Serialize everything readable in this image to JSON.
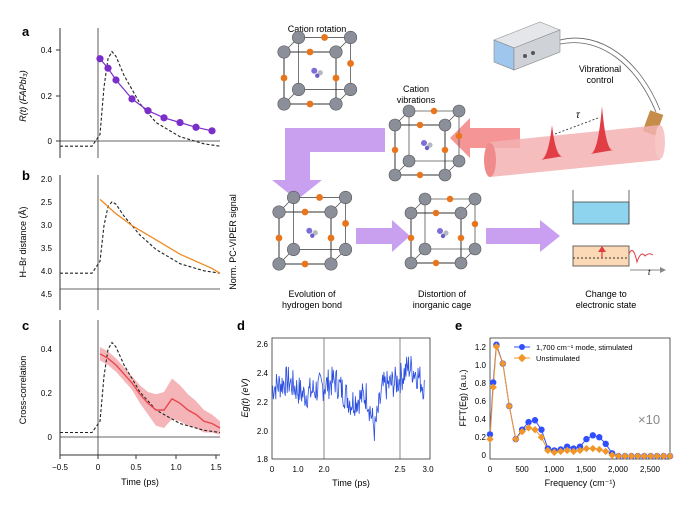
{
  "colors": {
    "purple": "#7b2fc9",
    "orange": "#f08a24",
    "red": "#e8474c",
    "red_band": "#f3a3a6",
    "blue": "#2b4fe0",
    "blue_dots": "#3050ff",
    "orange_dots": "#f0962a",
    "lavender_arrow": "#c08cf0",
    "pink_arrow": "#f06a6a",
    "atom_grey": "#8a8f99",
    "atom_orange": "#e8741c",
    "water": "#8fd4ee"
  },
  "panel_labels": {
    "a": "a",
    "b": "b",
    "c": "c",
    "d": "d",
    "e": "e"
  },
  "shared": {
    "ylabel_right": "Norm. PC-VIPER signal",
    "xlabel_time": "Time (ps)",
    "xticks_ac": [
      "−0.5",
      "0",
      "0.5",
      "1.0",
      "1.5"
    ]
  },
  "panel_a": {
    "ylabel": "R(t) (FAPbI₃)",
    "yticks": [
      "0.4",
      "0.2",
      "0"
    ]
  },
  "panel_b": {
    "ylabel": "H–Br distance (Å)",
    "yticks": [
      "2.0",
      "2.5",
      "3.0",
      "3.5",
      "4.0",
      "4.5"
    ]
  },
  "panel_c": {
    "ylabel": "Cross-correlation",
    "yticks": [
      "0.4",
      "0.2",
      "0"
    ]
  },
  "panel_d": {
    "ylabel": "Eg(t) (eV)",
    "yticks": [
      "2.6",
      "2.4",
      "2.2",
      "2.0",
      "1.8"
    ],
    "xticks": [
      "0",
      "1.0",
      "2.0",
      "2.5",
      "3.0"
    ],
    "xlabel": "Time (ps)"
  },
  "panel_e": {
    "ylabel": "FFT(Eg) (a.u.)",
    "yticks": [
      "1.2",
      "1.0",
      "0.8",
      "0.6",
      "0.4",
      "0.2",
      "0"
    ],
    "xticks": [
      "0",
      "500",
      "1,000",
      "1,500",
      "2,000",
      "2,500"
    ],
    "xlabel": "Frequency (cm⁻¹)",
    "legend_stimulated": "1,700 cm⁻¹ mode, stimulated",
    "legend_unstimulated": "Unstimulated",
    "scale_note": "×10"
  },
  "schematic": {
    "cation_rotation": "Cation rotation",
    "cation_vibrations_1": "Cation",
    "cation_vibrations_2": "vibrations",
    "vibrational_control_1": "Vibrational",
    "vibrational_control_2": "control",
    "tau": "τ",
    "evolution_1": "Evolution of",
    "evolution_2": "hydrogen bond",
    "distortion_1": "Distortion of",
    "distortion_2": "inorganic cage",
    "change_1": "Change to",
    "change_2": "electronic state",
    "t_label": "t"
  },
  "chart_data": [
    {
      "type": "line",
      "panel": "a",
      "ylabel": "R(t) (FAPbI₃)",
      "xlim": [
        -0.5,
        1.5
      ],
      "ylim": [
        -0.05,
        0.5
      ],
      "series": [
        {
          "style": "markers",
          "x": [
            0.0,
            0.1,
            0.2,
            0.4,
            0.6,
            0.8,
            1.0,
            1.2,
            1.4
          ],
          "y": [
            0.37,
            0.33,
            0.28,
            0.2,
            0.15,
            0.12,
            0.1,
            0.08,
            0.065
          ]
        },
        {
          "style": "dashed",
          "x": [
            -0.5,
            -0.1,
            0.0,
            0.05,
            0.1,
            0.15,
            0.2,
            0.3,
            0.5,
            0.7,
            1.0,
            1.3,
            1.5
          ],
          "y": [
            0.0,
            0.0,
            0.05,
            0.25,
            0.37,
            0.4,
            0.38,
            0.3,
            0.18,
            0.1,
            0.04,
            0.01,
            0.0
          ]
        }
      ]
    },
    {
      "type": "line",
      "panel": "b",
      "ylabel": "H–Br distance (Å)",
      "xlim": [
        -0.5,
        1.5
      ],
      "ylim": [
        4.5,
        2.0
      ],
      "series": [
        {
          "style": "solid",
          "x": [
            0.0,
            0.1,
            0.2,
            0.4,
            0.6,
            0.8,
            1.0,
            1.2,
            1.4,
            1.5
          ],
          "y": [
            2.45,
            2.6,
            2.75,
            3.0,
            3.2,
            3.4,
            3.6,
            3.75,
            3.9,
            4.0
          ]
        },
        {
          "style": "dashed",
          "x": [
            -0.5,
            -0.1,
            0.0,
            0.05,
            0.1,
            0.15,
            0.2,
            0.3,
            0.5,
            0.7,
            1.0,
            1.3,
            1.5
          ],
          "y": [
            4.0,
            4.0,
            3.75,
            3.0,
            2.6,
            2.5,
            2.55,
            2.8,
            3.2,
            3.5,
            3.8,
            3.95,
            4.0
          ]
        }
      ]
    },
    {
      "type": "line",
      "panel": "c",
      "ylabel": "Cross-correlation",
      "xlabel": "Time (ps)",
      "xlim": [
        -0.5,
        1.5
      ],
      "ylim": [
        -0.1,
        0.5
      ],
      "series": [
        {
          "style": "solid",
          "x": [
            0.0,
            0.1,
            0.2,
            0.3,
            0.4,
            0.5,
            0.6,
            0.7,
            0.8,
            0.9,
            1.0,
            1.1,
            1.2,
            1.3,
            1.4,
            1.5
          ],
          "y": [
            0.35,
            0.33,
            0.3,
            0.26,
            0.22,
            0.17,
            0.13,
            0.1,
            0.1,
            0.15,
            0.13,
            0.1,
            0.08,
            0.05,
            0.04,
            0.02
          ],
          "band": [
            0.03,
            0.03,
            0.03,
            0.03,
            0.03,
            0.04,
            0.05,
            0.07,
            0.08,
            0.09,
            0.08,
            0.07,
            0.06,
            0.05,
            0.04,
            0.03
          ]
        },
        {
          "style": "dashed",
          "x": [
            -0.5,
            -0.1,
            0.0,
            0.05,
            0.1,
            0.15,
            0.2,
            0.3,
            0.5,
            0.7,
            1.0,
            1.3,
            1.5
          ],
          "y": [
            0.0,
            0.0,
            0.05,
            0.25,
            0.37,
            0.4,
            0.38,
            0.3,
            0.18,
            0.1,
            0.04,
            0.01,
            0.0
          ]
        }
      ]
    },
    {
      "type": "line",
      "panel": "d",
      "ylabel": "Eg(t) (eV)",
      "xlabel": "Time (ps)",
      "xlim": [
        0,
        3.0
      ],
      "ylim": [
        1.8,
        2.65
      ],
      "vlines": [
        1.95,
        2.6
      ],
      "anchors": [
        [
          0,
          2.3
        ],
        [
          0.3,
          2.35
        ],
        [
          0.6,
          2.25
        ],
        [
          0.9,
          2.3
        ],
        [
          1.2,
          2.35
        ],
        [
          1.5,
          2.2
        ],
        [
          1.8,
          2.25
        ],
        [
          1.95,
          2.0
        ],
        [
          2.1,
          2.3
        ],
        [
          2.4,
          2.35
        ],
        [
          2.6,
          2.45
        ],
        [
          2.75,
          2.4
        ],
        [
          2.9,
          2.3
        ]
      ]
    },
    {
      "type": "line",
      "panel": "e",
      "ylabel": "FFT(Eg) (a.u.)",
      "xlabel": "Frequency (cm⁻¹)",
      "xlim": [
        0,
        2800
      ],
      "ylim": [
        0,
        1.25
      ],
      "series": [
        {
          "name": "1,700 cm⁻¹ mode, stimulated",
          "style": "markers",
          "x": [
            0,
            50,
            100,
            200,
            300,
            400,
            500,
            600,
            700,
            800,
            900,
            1000,
            1100,
            1200,
            1300,
            1400,
            1500,
            1600,
            1700,
            1800,
            1900,
            2000,
            2100,
            2200,
            2300,
            2400,
            2500,
            2600,
            2700,
            2800
          ],
          "y": [
            0.25,
            0.8,
            1.2,
            1.0,
            0.55,
            0.2,
            0.3,
            0.38,
            0.4,
            0.3,
            0.1,
            0.08,
            0.09,
            0.12,
            0.1,
            0.12,
            0.2,
            0.24,
            0.22,
            0.15,
            0.05,
            0.02,
            0.02,
            0.02,
            0.02,
            0.02,
            0.02,
            0.02,
            0.02,
            0.02
          ]
        },
        {
          "name": "Unstimulated",
          "style": "markers",
          "x": [
            0,
            50,
            100,
            200,
            300,
            400,
            500,
            600,
            700,
            800,
            900,
            1000,
            1100,
            1200,
            1300,
            1400,
            1500,
            1600,
            1700,
            1800,
            1900,
            2000,
            2100,
            2200,
            2300,
            2400,
            2500,
            2600,
            2700,
            2800
          ],
          "y": [
            0.2,
            0.75,
            1.18,
            1.0,
            0.55,
            0.2,
            0.28,
            0.32,
            0.3,
            0.22,
            0.08,
            0.06,
            0.07,
            0.08,
            0.07,
            0.08,
            0.1,
            0.1,
            0.09,
            0.07,
            0.03,
            0.02,
            0.02,
            0.02,
            0.02,
            0.02,
            0.02,
            0.02,
            0.02,
            0.02
          ]
        }
      ]
    }
  ]
}
